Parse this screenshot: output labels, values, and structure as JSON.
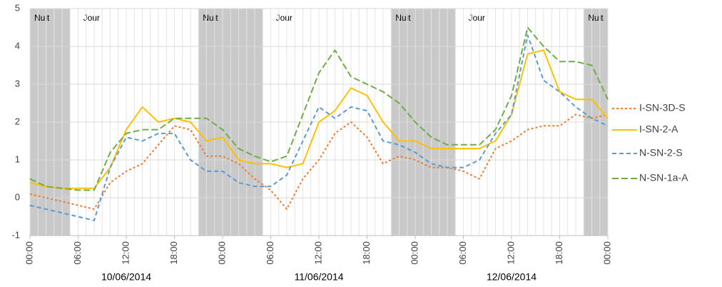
{
  "chart_data": {
    "type": "line",
    "x": [
      0,
      2,
      4,
      6,
      8,
      10,
      12,
      14,
      16,
      18,
      20,
      22,
      24,
      26,
      28,
      30,
      32,
      34,
      36,
      38,
      40,
      42,
      44,
      46,
      48,
      50,
      52,
      54,
      56,
      58,
      60,
      62,
      64,
      66,
      68,
      70,
      72
    ],
    "series": [
      {
        "name": "I-SN-3D-S",
        "color": "#ed7d31",
        "line_style": "dash-short",
        "values": [
          0.1,
          0,
          -0.1,
          -0.2,
          -0.3,
          0.4,
          0.7,
          0.9,
          1.4,
          1.9,
          1.8,
          1.1,
          1.1,
          0.9,
          0.5,
          0.2,
          -0.3,
          0.5,
          1.0,
          1.7,
          2.0,
          1.6,
          0.9,
          1.1,
          1.0,
          0.8,
          0.8,
          0.7,
          0.5,
          1.3,
          1.5,
          1.8,
          1.9,
          1.9,
          2.2,
          2.1,
          2.2
        ]
      },
      {
        "name": "I-SN-2-A",
        "color": "#ffc000",
        "line_style": "solid",
        "values": [
          0.4,
          0.3,
          0.25,
          0.25,
          0.25,
          0.8,
          1.8,
          2.4,
          2.0,
          2.1,
          2.0,
          1.5,
          1.6,
          1.0,
          0.9,
          0.9,
          0.8,
          0.9,
          2.0,
          2.3,
          2.9,
          2.7,
          2.0,
          1.5,
          1.5,
          1.3,
          1.3,
          1.3,
          1.3,
          1.5,
          2.2,
          3.8,
          3.9,
          2.8,
          2.6,
          2.6,
          2.1
        ]
      },
      {
        "name": "N-SN-2-S",
        "color": "#5b9bd5",
        "line_style": "dash",
        "values": [
          -0.2,
          -0.3,
          -0.4,
          -0.5,
          -0.6,
          0.8,
          1.6,
          1.5,
          1.7,
          1.7,
          1.0,
          0.7,
          0.7,
          0.4,
          0.3,
          0.3,
          0.6,
          1.5,
          2.4,
          2.1,
          2.4,
          2.3,
          1.5,
          1.4,
          1.2,
          0.9,
          0.8,
          0.8,
          1.0,
          1.7,
          2.2,
          4.3,
          3.1,
          2.8,
          2.4,
          2.1,
          1.9
        ]
      },
      {
        "name": "N-SN-1a-A",
        "color": "#70ad47",
        "line_style": "dash-long",
        "values": [
          0.5,
          0.3,
          0.25,
          0.2,
          0.2,
          1.2,
          1.7,
          1.8,
          1.8,
          2.1,
          2.1,
          2.1,
          1.8,
          1.3,
          1.1,
          0.95,
          1.1,
          2.2,
          3.3,
          3.9,
          3.2,
          3.0,
          2.8,
          2.5,
          2.0,
          1.6,
          1.4,
          1.4,
          1.4,
          1.8,
          2.7,
          4.5,
          4.0,
          3.6,
          3.6,
          3.5,
          2.6
        ]
      }
    ],
    "xlim": [
      0,
      72
    ],
    "xticks": [
      {
        "value": 0,
        "label": "00:00"
      },
      {
        "value": 6,
        "label": "06:00"
      },
      {
        "value": 12,
        "label": "12:00"
      },
      {
        "value": 18,
        "label": "18:00"
      },
      {
        "value": 24,
        "label": "00:00"
      },
      {
        "value": 30,
        "label": "06:00"
      },
      {
        "value": 36,
        "label": "12:00"
      },
      {
        "value": 42,
        "label": "18:00"
      },
      {
        "value": 48,
        "label": "00:00"
      },
      {
        "value": 54,
        "label": "06:00"
      },
      {
        "value": 60,
        "label": "12:00"
      },
      {
        "value": 66,
        "label": "18:00"
      },
      {
        "value": 72,
        "label": "00:00"
      }
    ],
    "date_ticks": [
      {
        "value": 12,
        "label": "10/06/2014"
      },
      {
        "value": 36,
        "label": "11/06/2014"
      },
      {
        "value": 60,
        "label": "12/06/2014"
      }
    ],
    "xminor_step": 1,
    "ylim": [
      -1,
      5
    ],
    "yticks": [
      -1,
      0,
      1,
      2,
      3,
      4,
      5
    ],
    "grid": true,
    "periods": [
      {
        "label": "Nuit",
        "start": 0,
        "end": 5,
        "shaded": true
      },
      {
        "label": "Jour",
        "start": 5,
        "end": 21,
        "shaded": false
      },
      {
        "label": "Nuit",
        "start": 21,
        "end": 29,
        "shaded": true
      },
      {
        "label": "Jour",
        "start": 29,
        "end": 45,
        "shaded": false
      },
      {
        "label": "Nuit",
        "start": 45,
        "end": 53,
        "shaded": true
      },
      {
        "label": "Jour",
        "start": 53,
        "end": 69,
        "shaded": false
      },
      {
        "label": "Nuit",
        "start": 69,
        "end": 72,
        "shaded": true
      }
    ],
    "legend": "right"
  }
}
